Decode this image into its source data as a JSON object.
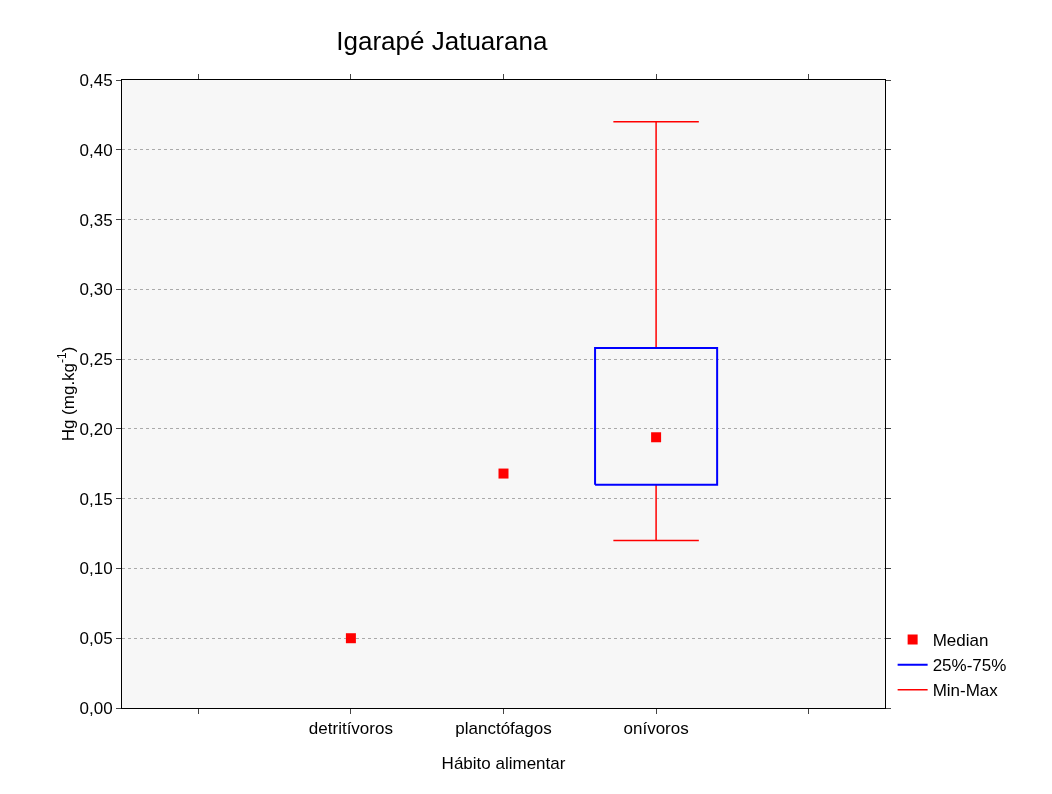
{
  "chart_data": {
    "type": "box",
    "title": "Igarapé Jatuarana",
    "xlabel": "Hábito alimentar",
    "ylabel": "Hg (mg.kg$^{-1}$)",
    "categories": [
      null,
      "detritívoros",
      "planctófagos",
      "onívoros",
      null
    ],
    "series": [
      {
        "name": "Median",
        "type": "scatter",
        "color": "#ff0000",
        "values": [
          null,
          0.05,
          0.168,
          null,
          null
        ]
      },
      {
        "name": "25%-75%",
        "type": "box",
        "color": "#0000ff",
        "boxes": [
          null,
          null,
          null,
          {
            "low": 0.12,
            "q1": 0.16,
            "median": 0.194,
            "q3": 0.258,
            "high": 0.42
          },
          null
        ]
      },
      {
        "name": "Min-Max",
        "type": "line",
        "color": "#ff0000",
        "values": [
          null,
          null,
          null,
          null,
          null
        ]
      }
    ],
    "ylim": [
      0,
      0.45
    ],
    "yticks": [
      {
        "value": 0,
        "label": "0,00"
      },
      {
        "value": 0.05,
        "label": "0,05"
      },
      {
        "value": 0.1,
        "label": "0,10"
      },
      {
        "value": 0.15,
        "label": "0,15"
      },
      {
        "value": 0.2,
        "label": "0,20"
      },
      {
        "value": 0.25,
        "label": "0,25"
      },
      {
        "value": 0.3,
        "label": "0,30"
      },
      {
        "value": 0.35,
        "label": "0,35"
      },
      {
        "value": 0.4,
        "label": "0,40"
      },
      {
        "value": 0.45,
        "label": "0,45"
      }
    ],
    "grid": "y",
    "legend": "bottom right",
    "marker": "square"
  }
}
